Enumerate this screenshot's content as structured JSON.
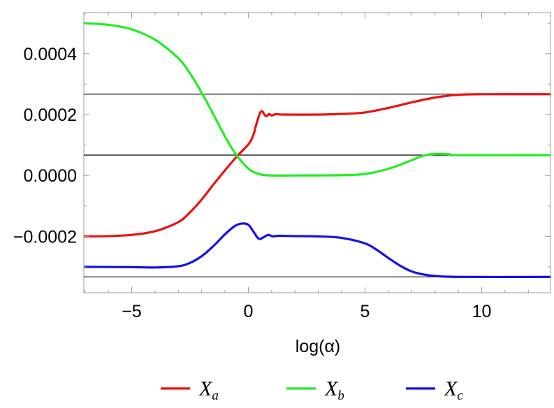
{
  "chart_data": {
    "type": "line",
    "title": "",
    "xlabel": "log(α)",
    "ylabel": "",
    "xlim": [
      -7.05,
      12.95
    ],
    "ylim": [
      -0.000385,
      0.000535
    ],
    "x_ticks": [
      -5,
      0,
      5,
      10
    ],
    "x_tick_labels": [
      "−5",
      "0",
      "5",
      "10"
    ],
    "y_ticks": [
      -0.0002,
      0.0,
      0.0002,
      0.0004
    ],
    "y_tick_labels": [
      "−0.0002",
      "0.0000",
      "0.0002",
      "0.0004"
    ],
    "grid": false,
    "legend_position": "bottom",
    "reference_lines": [
      0.000267,
      6.7e-05,
      -0.000333
    ],
    "series": [
      {
        "name": "X",
        "subscript": "a",
        "color": "#ee1111",
        "points": [
          [
            -7.05,
            -0.0002
          ],
          [
            -6,
            -0.000199
          ],
          [
            -5,
            -0.000195
          ],
          [
            -4,
            -0.000183
          ],
          [
            -3,
            -0.000153
          ],
          [
            -2.5,
            -0.000121
          ],
          [
            -2,
            -7.9e-05
          ],
          [
            -1.5,
            -3e-05
          ],
          [
            -1,
            1.7e-05
          ],
          [
            -0.5,
            6.2e-05
          ],
          [
            0,
            0.000102
          ],
          [
            0.2,
            0.00013
          ],
          [
            0.35,
            0.00017
          ],
          [
            0.5,
            0.000205
          ],
          [
            0.6,
            0.00021
          ],
          [
            0.75,
            0.000195
          ],
          [
            0.9,
            0.000202
          ],
          [
            1.0,
            0.000197
          ],
          [
            1.2,
            0.000202
          ],
          [
            1.5,
            0.0002
          ],
          [
            3,
            0.0002
          ],
          [
            4,
            0.000202
          ],
          [
            5,
            0.000207
          ],
          [
            6,
            0.000222
          ],
          [
            7,
            0.00024
          ],
          [
            8,
            0.000256
          ],
          [
            9,
            0.000265
          ],
          [
            10,
            0.000267
          ],
          [
            12.95,
            0.000267
          ]
        ]
      },
      {
        "name": "X",
        "subscript": "b",
        "color": "#22ee22",
        "points": [
          [
            -7.05,
            0.0005
          ],
          [
            -6,
            0.000495
          ],
          [
            -5,
            0.00048
          ],
          [
            -4,
            0.000446
          ],
          [
            -3,
            0.000385
          ],
          [
            -2.5,
            0.000335
          ],
          [
            -2,
            0.000272
          ],
          [
            -1.5,
            0.000201
          ],
          [
            -1,
            0.000128
          ],
          [
            -0.5,
            6.6e-05
          ],
          [
            0,
            2.3e-05
          ],
          [
            0.3,
            9e-06
          ],
          [
            0.6,
            2e-06
          ],
          [
            1,
            0.0
          ],
          [
            2,
            0.0
          ],
          [
            4,
            1e-06
          ],
          [
            5,
            5e-06
          ],
          [
            6,
            2.2e-05
          ],
          [
            7,
            5e-05
          ],
          [
            7.5,
            6.5e-05
          ],
          [
            8,
            7.1e-05
          ],
          [
            8.6,
            7e-05
          ],
          [
            9,
            6.7e-05
          ],
          [
            12.95,
            6.7e-05
          ]
        ]
      },
      {
        "name": "X",
        "subscript": "c",
        "color": "#1111ee",
        "points": [
          [
            -7.05,
            -0.0003
          ],
          [
            -5,
            -0.000301
          ],
          [
            -4,
            -0.000302
          ],
          [
            -3,
            -0.000298
          ],
          [
            -2.5,
            -0.000287
          ],
          [
            -2,
            -0.000265
          ],
          [
            -1.5,
            -0.000232
          ],
          [
            -1,
            -0.000193
          ],
          [
            -0.6,
            -0.000167
          ],
          [
            -0.3,
            -0.000158
          ],
          [
            0,
            -0.000162
          ],
          [
            0.25,
            -0.000188
          ],
          [
            0.45,
            -0.000208
          ],
          [
            0.65,
            -0.000203
          ],
          [
            0.85,
            -0.000195
          ],
          [
            1.05,
            -0.0002
          ],
          [
            1.3,
            -0.000198
          ],
          [
            2,
            -0.000199
          ],
          [
            3,
            -0.0002
          ],
          [
            4,
            -0.000205
          ],
          [
            5,
            -0.000223
          ],
          [
            5.5,
            -0.000244
          ],
          [
            6,
            -0.000271
          ],
          [
            6.5,
            -0.000296
          ],
          [
            7,
            -0.000315
          ],
          [
            7.5,
            -0.000325
          ],
          [
            8,
            -0.00033
          ],
          [
            9,
            -0.000333
          ],
          [
            12.95,
            -0.000333
          ]
        ]
      }
    ]
  },
  "colors": {
    "reference_line": "#000000",
    "frame": "#999999"
  }
}
